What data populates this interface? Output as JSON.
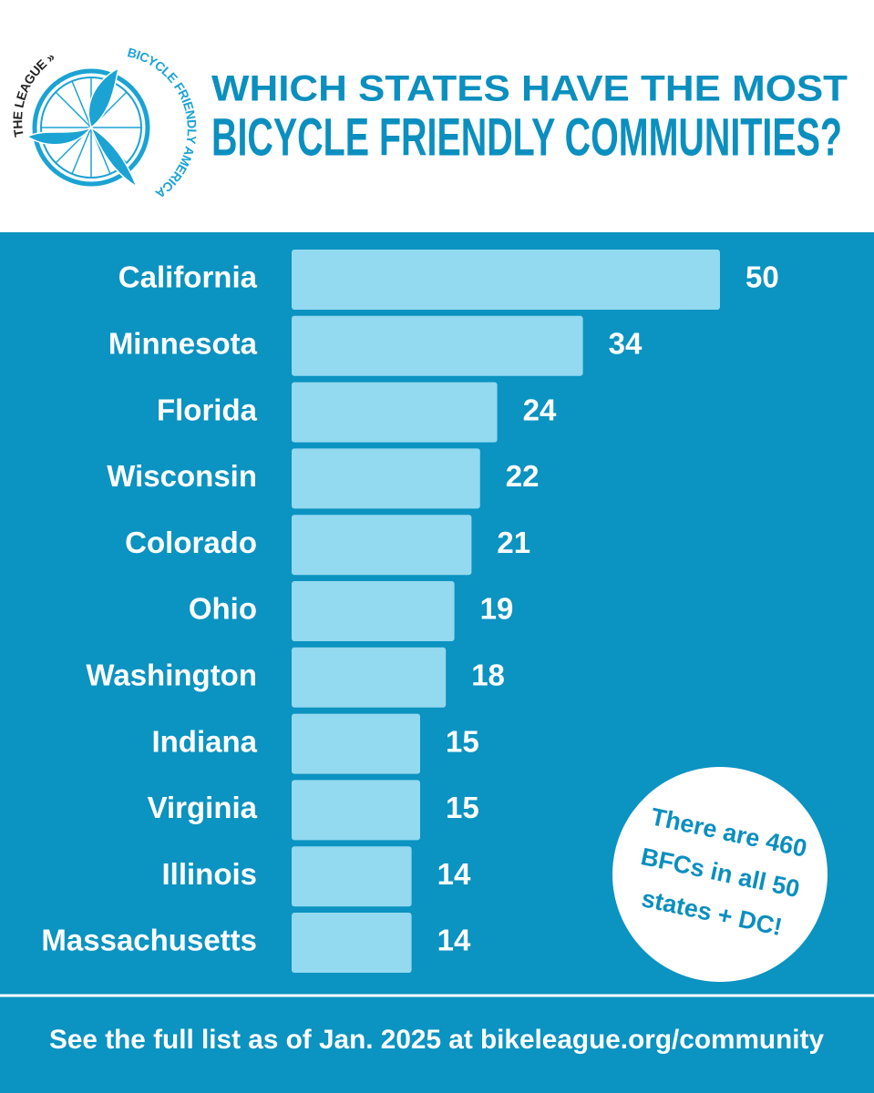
{
  "header": {
    "logo_top": "THE LEAGUE »",
    "logo_arc": "BICYCLE FRIENDLY AMERICA"
  },
  "chart_data": {
    "type": "bar",
    "orientation": "horizontal",
    "title": [
      "WHICH STATES HAVE THE MOST",
      "BICYCLE FRIENDLY COMMUNITIES?"
    ],
    "categories": [
      "California",
      "Minnesota",
      "Florida",
      "Wisconsin",
      "Colorado",
      "Ohio",
      "Washington",
      "Indiana",
      "Virginia",
      "Illinois",
      "Massachusetts"
    ],
    "values": [
      50,
      34,
      24,
      22,
      21,
      19,
      18,
      15,
      15,
      14,
      14
    ],
    "color": "#93d9ef"
  },
  "callout": [
    "There are 460",
    "BFCs in all 50",
    "states + DC!"
  ],
  "footer": "See the full list as of Jan. 2025 at bikeleague.org/community"
}
